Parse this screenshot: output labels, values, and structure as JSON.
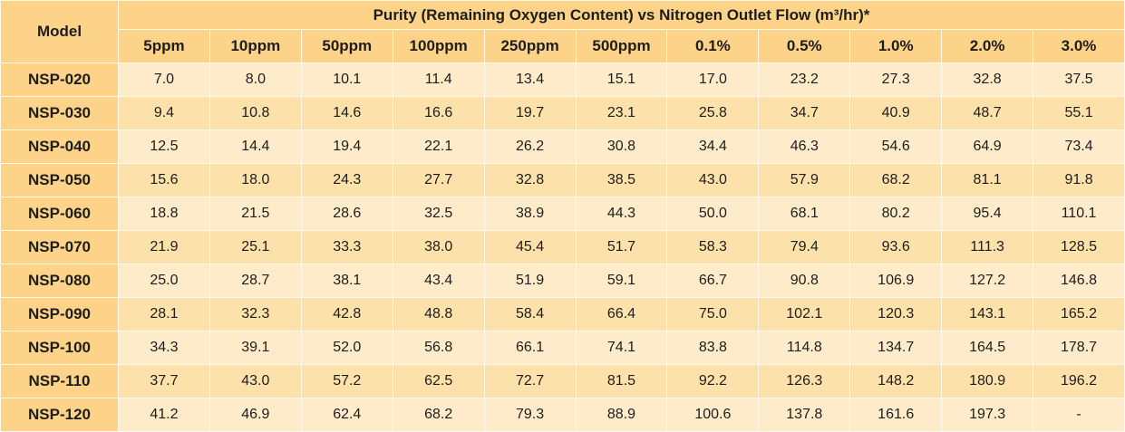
{
  "table": {
    "model_header": "Model",
    "group_header": "Purity (Remaining Oxygen Content) vs Nitrogen Outlet Flow (m³/hr)*",
    "columns": [
      "5ppm",
      "10ppm",
      "50ppm",
      "100ppm",
      "250ppm",
      "500ppm",
      "0.1%",
      "0.5%",
      "1.0%",
      "2.0%",
      "3.0%"
    ],
    "rows": [
      {
        "model": "NSP-020",
        "values": [
          "7.0",
          "8.0",
          "10.1",
          "11.4",
          "13.4",
          "15.1",
          "17.0",
          "23.2",
          "27.3",
          "32.8",
          "37.5"
        ]
      },
      {
        "model": "NSP-030",
        "values": [
          "9.4",
          "10.8",
          "14.6",
          "16.6",
          "19.7",
          "23.1",
          "25.8",
          "34.7",
          "40.9",
          "48.7",
          "55.1"
        ]
      },
      {
        "model": "NSP-040",
        "values": [
          "12.5",
          "14.4",
          "19.4",
          "22.1",
          "26.2",
          "30.8",
          "34.4",
          "46.3",
          "54.6",
          "64.9",
          "73.4"
        ]
      },
      {
        "model": "NSP-050",
        "values": [
          "15.6",
          "18.0",
          "24.3",
          "27.7",
          "32.8",
          "38.5",
          "43.0",
          "57.9",
          "68.2",
          "81.1",
          "91.8"
        ]
      },
      {
        "model": "NSP-060",
        "values": [
          "18.8",
          "21.5",
          "28.6",
          "32.5",
          "38.9",
          "44.3",
          "50.0",
          "68.1",
          "80.2",
          "95.4",
          "110.1"
        ]
      },
      {
        "model": "NSP-070",
        "values": [
          "21.9",
          "25.1",
          "33.3",
          "38.0",
          "45.4",
          "51.7",
          "58.3",
          "79.4",
          "93.6",
          "111.3",
          "128.5"
        ]
      },
      {
        "model": "NSP-080",
        "values": [
          "25.0",
          "28.7",
          "38.1",
          "43.4",
          "51.9",
          "59.1",
          "66.7",
          "90.8",
          "106.9",
          "127.2",
          "146.8"
        ]
      },
      {
        "model": "NSP-090",
        "values": [
          "28.1",
          "32.3",
          "42.8",
          "48.8",
          "58.4",
          "66.4",
          "75.0",
          "102.1",
          "120.3",
          "143.1",
          "165.2"
        ]
      },
      {
        "model": "NSP-100",
        "values": [
          "34.3",
          "39.1",
          "52.0",
          "56.8",
          "66.1",
          "74.1",
          "83.8",
          "114.8",
          "134.7",
          "164.5",
          "178.7"
        ]
      },
      {
        "model": "NSP-110",
        "values": [
          "37.7",
          "43.0",
          "57.2",
          "62.5",
          "72.7",
          "81.5",
          "92.2",
          "126.3",
          "148.2",
          "180.9",
          "196.2"
        ]
      },
      {
        "model": "NSP-120",
        "values": [
          "41.2",
          "46.9",
          "62.4",
          "68.2",
          "79.3",
          "88.9",
          "100.6",
          "137.8",
          "161.6",
          "197.3",
          "-"
        ]
      }
    ]
  }
}
